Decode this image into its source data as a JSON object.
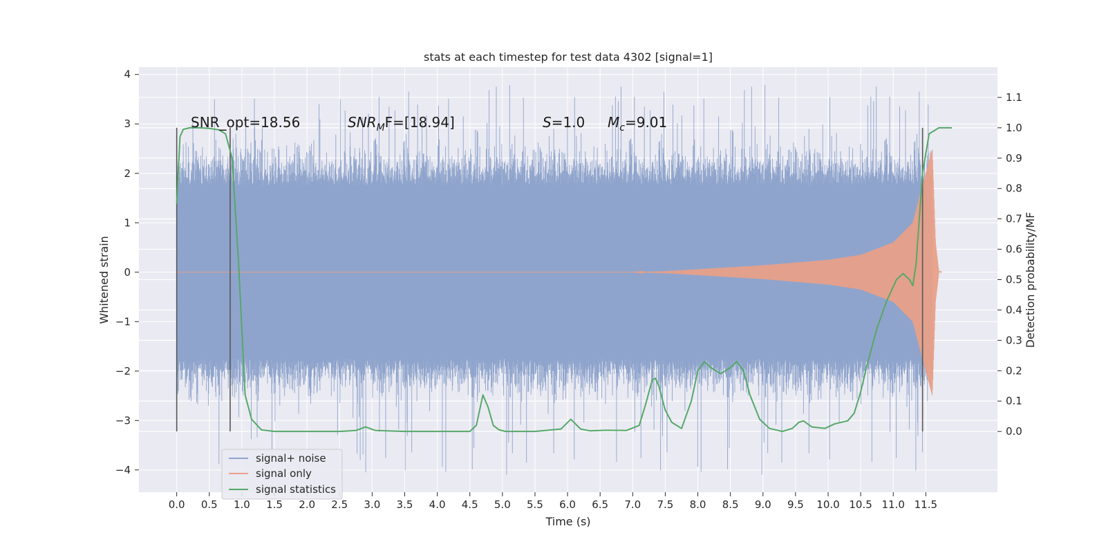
{
  "chart_data": {
    "type": "line",
    "title": "stats at each timestep for test data 4302 [signal=1]",
    "xlabel": "Time (s)",
    "ylabel_left": "Whitened strain",
    "ylabel_right": "Detection probability/MF",
    "xlim": [
      -0.58,
      12.6
    ],
    "ylim_left": [
      -4.45,
      4.15
    ],
    "ylim_right": [
      -0.2,
      1.2
    ],
    "grid": true,
    "legend_position": "lower-left",
    "x_ticks": [
      "0.0",
      "0.5",
      "1.0",
      "1.5",
      "2.0",
      "2.5",
      "3.0",
      "3.5",
      "4.0",
      "4.5",
      "5.0",
      "5.5",
      "6.0",
      "6.5",
      "7.0",
      "7.5",
      "8.0",
      "8.5",
      "9.0",
      "9.5",
      "10.0",
      "10.5",
      "11.0",
      "11.5"
    ],
    "y_ticks_left": [
      "−4",
      "−3",
      "−2",
      "−1",
      "0",
      "1",
      "2",
      "3",
      "4"
    ],
    "y_ticks_right": [
      "0.0",
      "0.1",
      "0.2",
      "0.3",
      "0.4",
      "0.5",
      "0.6",
      "0.7",
      "0.8",
      "0.9",
      "1.0",
      "1.1"
    ],
    "annotations": {
      "snr_opt": "SNR_opt=18.56",
      "snr_mf_base": "SNR",
      "snr_mf_sub": "M",
      "snr_mf_rest": "F=[18.94]",
      "s_label": "S",
      "s_rest": "=1.0",
      "mc_base": "M",
      "mc_sub": "c",
      "mc_rest": "=9.01"
    },
    "series": [
      {
        "name": "signal+ noise",
        "color": "#8fa4cc",
        "description_axis": "left",
        "t_range": [
          0.0,
          11.6
        ],
        "envelope_min": -4.1,
        "envelope_max": 3.8
      },
      {
        "name": "signal only",
        "color": "#e8a088",
        "description_axis": "left",
        "t_range": [
          0.0,
          11.6
        ],
        "amplitude": [
          [
            7.5,
            0.02
          ],
          [
            8.0,
            0.06
          ],
          [
            9.0,
            0.14
          ],
          [
            10.0,
            0.25
          ],
          [
            10.5,
            0.35
          ],
          [
            11.0,
            0.6
          ],
          [
            11.3,
            1.0
          ],
          [
            11.5,
            2.0
          ],
          [
            11.6,
            2.5
          ],
          [
            11.65,
            0.6
          ],
          [
            11.7,
            0.03
          ]
        ]
      },
      {
        "name": "signal statistics",
        "color": "#55a868",
        "axis": "right",
        "x": [
          0.0,
          0.05,
          0.1,
          0.2,
          0.35,
          0.5,
          0.65,
          0.75,
          0.85,
          0.95,
          1.05,
          1.15,
          1.3,
          1.5,
          2.0,
          2.5,
          2.75,
          2.9,
          3.05,
          3.5,
          4.0,
          4.5,
          4.6,
          4.7,
          4.78,
          4.86,
          4.95,
          5.05,
          5.5,
          5.9,
          6.05,
          6.2,
          6.35,
          6.6,
          6.9,
          7.1,
          7.2,
          7.3,
          7.35,
          7.4,
          7.5,
          7.6,
          7.75,
          7.9,
          8.0,
          8.1,
          8.2,
          8.35,
          8.5,
          8.6,
          8.7,
          8.8,
          8.95,
          9.1,
          9.3,
          9.45,
          9.55,
          9.62,
          9.75,
          9.95,
          10.1,
          10.3,
          10.4,
          10.5,
          10.6,
          10.75,
          10.9,
          11.05,
          11.15,
          11.25,
          11.3,
          11.35,
          11.45,
          11.55,
          11.7,
          11.9
        ],
        "y": [
          0.75,
          0.97,
          0.995,
          1.0,
          1.0,
          0.998,
          0.993,
          0.98,
          0.9,
          0.55,
          0.12,
          0.04,
          0.005,
          0.0,
          0.0,
          0.0,
          0.003,
          0.015,
          0.003,
          0.0,
          0.0,
          0.0,
          0.02,
          0.12,
          0.08,
          0.02,
          0.005,
          0.0,
          0.0,
          0.008,
          0.04,
          0.008,
          0.002,
          0.004,
          0.003,
          0.02,
          0.09,
          0.17,
          0.175,
          0.15,
          0.07,
          0.03,
          0.01,
          0.1,
          0.2,
          0.23,
          0.21,
          0.19,
          0.21,
          0.23,
          0.2,
          0.12,
          0.04,
          0.01,
          0.0,
          0.01,
          0.03,
          0.035,
          0.015,
          0.01,
          0.025,
          0.035,
          0.06,
          0.13,
          0.22,
          0.34,
          0.43,
          0.5,
          0.52,
          0.5,
          0.48,
          0.55,
          0.85,
          0.98,
          1.0,
          1.0
        ]
      }
    ],
    "vertical_markers": [
      0.0,
      0.82,
      11.45
    ]
  }
}
